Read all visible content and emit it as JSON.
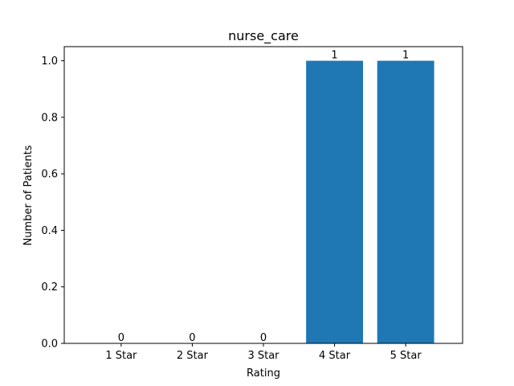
{
  "chart_data": {
    "type": "bar",
    "title": "nurse_care",
    "xlabel": "Rating",
    "ylabel": "Number of Patients",
    "categories": [
      "1 Star",
      "2 Star",
      "3 Star",
      "4 Star",
      "5 Star"
    ],
    "values": [
      0,
      0,
      0,
      1,
      1
    ],
    "data_labels": [
      "0",
      "0",
      "0",
      "1",
      "1"
    ],
    "ylim": [
      0,
      1.05
    ],
    "yticks": [
      0.0,
      0.2,
      0.4,
      0.6,
      0.8,
      1.0
    ],
    "ytick_labels": [
      "0.0",
      "0.2",
      "0.4",
      "0.6",
      "0.8",
      "1.0"
    ],
    "bar_color": "#1f77b4",
    "grid": false,
    "legend": "none"
  }
}
